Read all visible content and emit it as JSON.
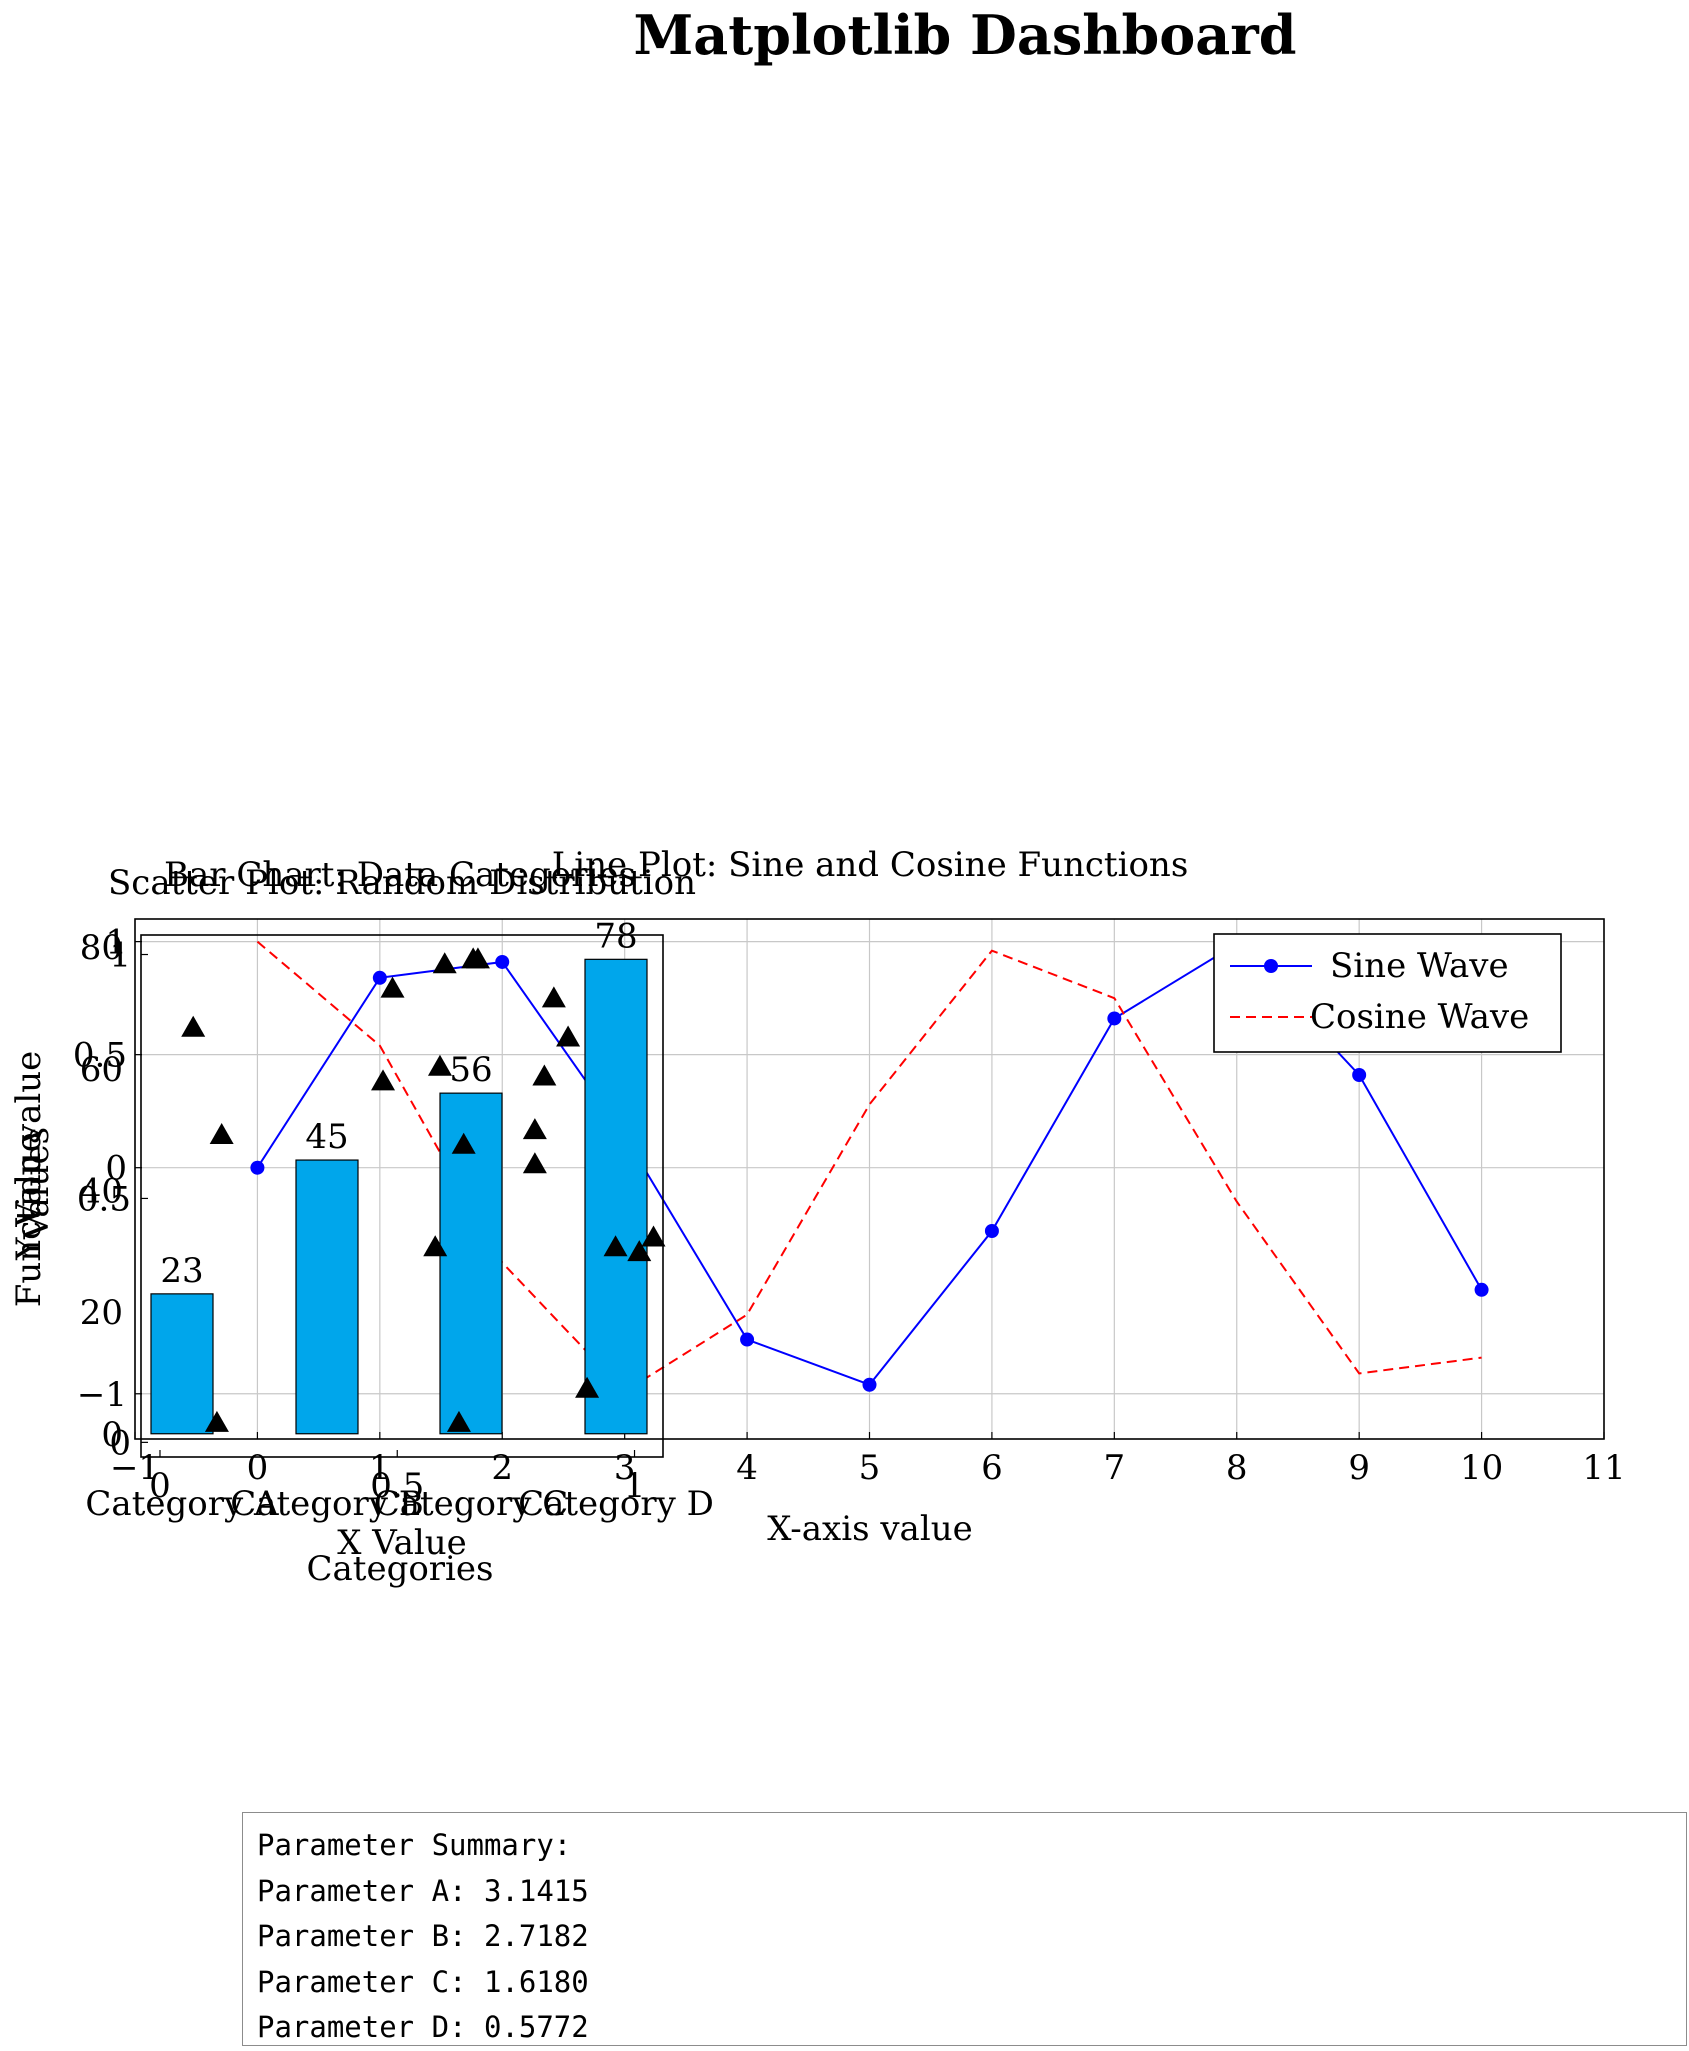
{
  "dashboard": {
    "title": "Matplotlib Dashboard"
  },
  "chart_data": [
    {
      "type": "line",
      "title": "Line Plot: Sine and Cosine Functions",
      "xlabel": "X-axis value",
      "ylabel": "Function value",
      "xlim": [
        -1,
        11
      ],
      "ylim": [
        -1.2,
        1.1
      ],
      "x_ticks": [
        -1,
        0,
        1,
        2,
        3,
        4,
        5,
        6,
        7,
        8,
        9,
        10,
        11
      ],
      "y_ticks": [
        -1,
        0,
        0.5,
        1
      ],
      "grid": true,
      "legend": "top-right",
      "series": [
        {
          "name": "Sine Wave",
          "color": "#0000ff",
          "style": "solid",
          "marker": "circle",
          "x": [
            0,
            1,
            2,
            3,
            4,
            5,
            6,
            7,
            8,
            9,
            10
          ],
          "y": [
            0.0,
            0.84,
            0.91,
            0.14,
            -0.76,
            -0.96,
            -0.28,
            0.66,
            0.99,
            0.41,
            -0.54
          ]
        },
        {
          "name": "Cosine Wave",
          "color": "#ff0000",
          "style": "dashed",
          "marker": "none",
          "x": [
            0,
            1,
            2,
            3,
            4,
            5,
            6,
            7,
            8,
            9,
            10
          ],
          "y": [
            1.0,
            0.54,
            -0.42,
            -0.99,
            -0.65,
            0.28,
            0.96,
            0.75,
            -0.15,
            -0.91,
            -0.84
          ]
        }
      ]
    },
    {
      "type": "bar",
      "title": "Bar Chart: Data Categories",
      "xlabel": "Categories",
      "ylabel": "Values",
      "categories": [
        "Category A",
        "Category B",
        "Category C",
        "Category D"
      ],
      "values": [
        23,
        45,
        56,
        78
      ],
      "ylim": [
        -3,
        82
      ],
      "y_ticks": [
        0,
        20,
        40,
        60,
        80
      ],
      "bar_color": "#00a6eb"
    },
    {
      "type": "scatter",
      "title": "Scatter Plot: Random Distribution",
      "xlabel": "X Value",
      "ylabel": "Y Value",
      "xlim": [
        -0.04,
        1.06
      ],
      "ylim": [
        -0.03,
        1.04
      ],
      "x_ticks": [
        0,
        0.5,
        1
      ],
      "y_ticks": [
        0,
        0.5,
        1
      ],
      "marker": "triangle",
      "color": "#000000",
      "x": [
        0.07,
        0.13,
        0.12,
        0.47,
        0.49,
        0.58,
        0.59,
        0.6,
        0.63,
        0.64,
        0.66,
        0.67,
        0.79,
        0.79,
        0.81,
        0.83,
        0.86,
        0.9,
        0.96,
        1.01,
        1.04
      ],
      "y": [
        0.85,
        0.63,
        0.04,
        0.74,
        0.93,
        0.4,
        0.77,
        0.98,
        0.04,
        0.61,
        0.99,
        0.99,
        0.57,
        0.64,
        0.75,
        0.91,
        0.83,
        0.11,
        0.4,
        0.39,
        0.42
      ]
    }
  ],
  "parameters": {
    "heading": "Parameter Summary:",
    "lines": [
      "Parameter A: 3.1415",
      "Parameter B: 2.7182",
      "Parameter C: 1.6180",
      "Parameter D: 0.5772"
    ]
  }
}
